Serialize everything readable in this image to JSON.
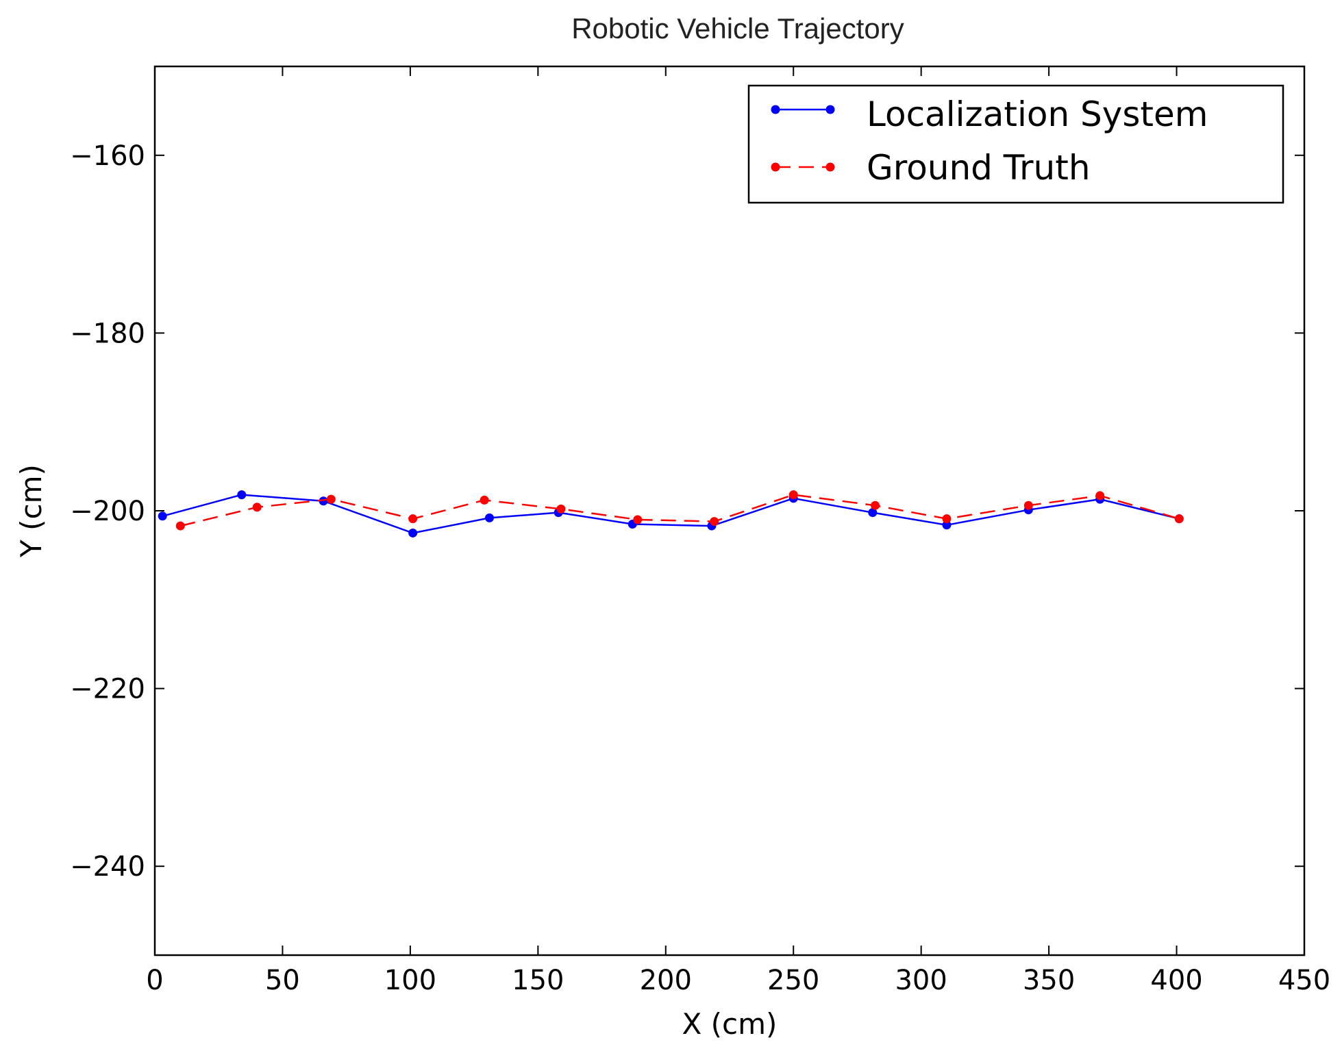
{
  "chart_data": {
    "type": "line",
    "title": "Robotic Vehicle Trajectory",
    "xlabel": "X (cm)",
    "ylabel": "Y (cm)",
    "xlim": [
      0,
      450
    ],
    "ylim": [
      -250,
      -150
    ],
    "x_ticks": [
      0,
      50,
      100,
      150,
      200,
      250,
      300,
      350,
      400,
      450
    ],
    "y_ticks": [
      -160,
      -180,
      -200,
      -220,
      -240
    ],
    "x_tick_labels": [
      "0",
      "50",
      "100",
      "150",
      "200",
      "250",
      "300",
      "350",
      "400",
      "450"
    ],
    "y_tick_labels": [
      "−160",
      "−180",
      "−200",
      "−220",
      "−240"
    ],
    "grid": false,
    "legend_position": "top-right",
    "series": [
      {
        "name": "Localization System",
        "color": "#0000ff",
        "line_style": "solid",
        "marker": "circle",
        "x": [
          3,
          34,
          66,
          101,
          131,
          158,
          187,
          218,
          250,
          281,
          310,
          342,
          370,
          401
        ],
        "y": [
          -200.6,
          -198.2,
          -198.9,
          -202.5,
          -200.8,
          -200.2,
          -201.5,
          -201.7,
          -198.6,
          -200.2,
          -201.6,
          -199.9,
          -198.7,
          -200.9
        ]
      },
      {
        "name": "Ground Truth",
        "color": "#ff0000",
        "line_style": "dashed",
        "marker": "circle",
        "x": [
          10,
          40,
          69,
          101,
          129,
          159,
          189,
          219,
          250,
          282,
          310,
          342,
          370,
          401
        ],
        "y": [
          -201.7,
          -199.6,
          -198.7,
          -200.9,
          -198.8,
          -199.8,
          -201.0,
          -201.2,
          -198.2,
          -199.4,
          -200.9,
          -199.4,
          -198.3,
          -200.9
        ]
      }
    ]
  }
}
